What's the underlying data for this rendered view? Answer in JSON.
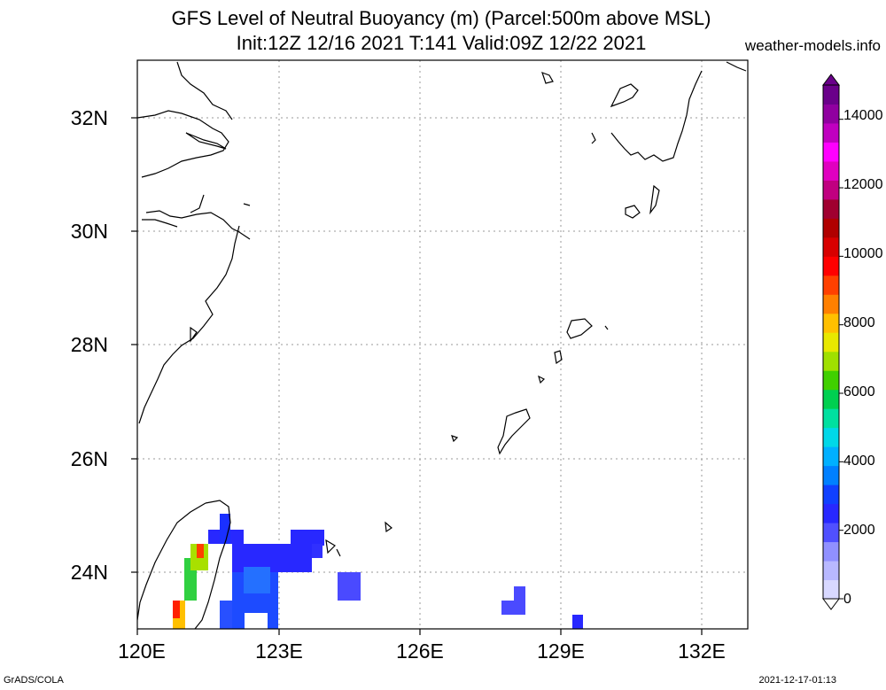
{
  "title": {
    "line1": "GFS Level of Neutral Buoyancy (m) (Parcel:500m above MSL)",
    "line2": "Init:12Z 12/16 2021 T:141 Valid:09Z 12/22 2021",
    "site": "weather-models.info"
  },
  "axes": {
    "lat_labels": [
      "32N",
      "30N",
      "28N",
      "26N",
      "24N"
    ],
    "lon_labels": [
      "120E",
      "123E",
      "126E",
      "129E",
      "132E"
    ],
    "lon_range": [
      120,
      133
    ],
    "lat_range": [
      23,
      33
    ]
  },
  "colorbar": {
    "labels": [
      "14000",
      "12000",
      "10000",
      "8000",
      "6000",
      "4000",
      "2000",
      "0"
    ],
    "colors": [
      "#d8d8ff",
      "#b8b8ff",
      "#9090ff",
      "#5050ff",
      "#2828ff",
      "#1040ff",
      "#0080ff",
      "#00b0ff",
      "#00d8e8",
      "#00e0a0",
      "#00d050",
      "#40d000",
      "#a0e000",
      "#e8e800",
      "#ffc000",
      "#ff8000",
      "#ff4000",
      "#ff0000",
      "#d80000",
      "#b00000",
      "#a00030",
      "#c00080",
      "#e000c0",
      "#ff00ff",
      "#c000c0",
      "#9000a0",
      "#6a008a"
    ]
  },
  "footer": {
    "left": "GrADS/COLA",
    "right": "2021-12-17-01:13"
  },
  "chart_data": {
    "type": "heatmap",
    "title": "GFS Level of Neutral Buoyancy (m) (Parcel:500m above MSL)",
    "variable": "Level of Neutral Buoyancy (m)",
    "value_range": [
      0,
      15000
    ],
    "grid_on": true,
    "cells": [
      {
        "lon": 121.7,
        "lat": 24.6,
        "value": 1400
      },
      {
        "lon": 122.0,
        "lat": 24.6,
        "value": 1400
      },
      {
        "lon": 121.3,
        "lat": 24.2,
        "value": 5500
      },
      {
        "lon": 121.0,
        "lat": 23.8,
        "value": 4500
      },
      {
        "lon": 120.9,
        "lat": 23.2,
        "value": 10500
      },
      {
        "lon": 122.5,
        "lat": 24.3,
        "value": 1500
      },
      {
        "lon": 123.0,
        "lat": 24.3,
        "value": 1400
      },
      {
        "lon": 123.5,
        "lat": 24.3,
        "value": 1400
      },
      {
        "lon": 122.5,
        "lat": 23.6,
        "value": 2200
      },
      {
        "lon": 122.8,
        "lat": 23.2,
        "value": 1800
      },
      {
        "lon": 124.0,
        "lat": 24.6,
        "value": 1300
      },
      {
        "lon": 124.6,
        "lat": 23.7,
        "value": 1200
      },
      {
        "lon": 128.0,
        "lat": 23.4,
        "value": 1200
      },
      {
        "lon": 129.4,
        "lat": 23.1,
        "value": 1300
      }
    ]
  }
}
